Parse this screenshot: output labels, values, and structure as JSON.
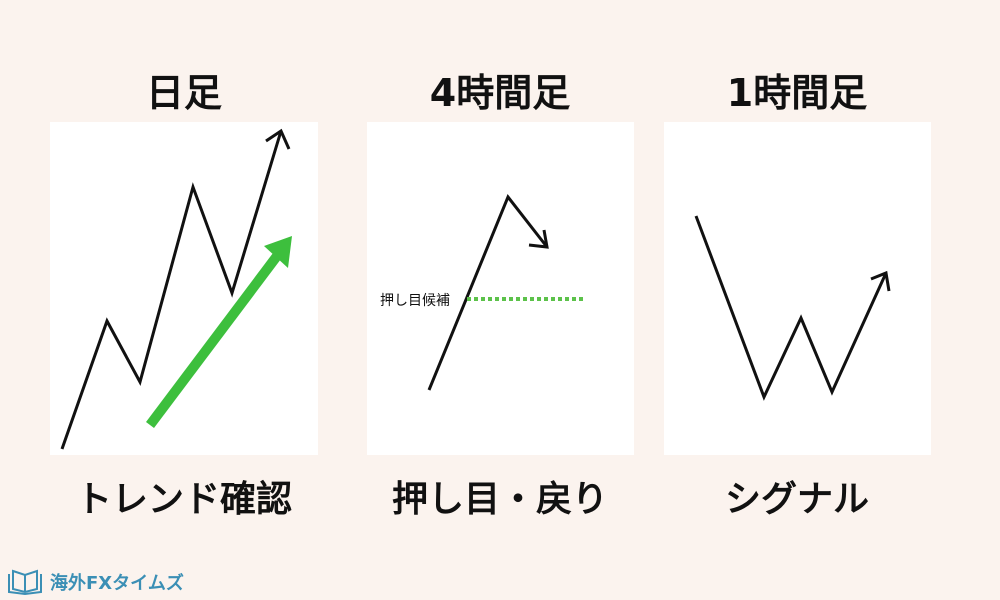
{
  "panels": [
    {
      "title": "日足",
      "label": "トレンド確認"
    },
    {
      "title": "4時間足",
      "label": "押し目・戻り",
      "note": "押し目候補"
    },
    {
      "title": "1時間足",
      "label": "シグナル"
    }
  ],
  "logo": {
    "text": "海外FXタイムズ"
  },
  "colors": {
    "background": "#fbf3ee",
    "panel": "#ffffff",
    "line": "#111111",
    "accent_green": "#3dbf3d",
    "logo": "#3b8fb5"
  }
}
